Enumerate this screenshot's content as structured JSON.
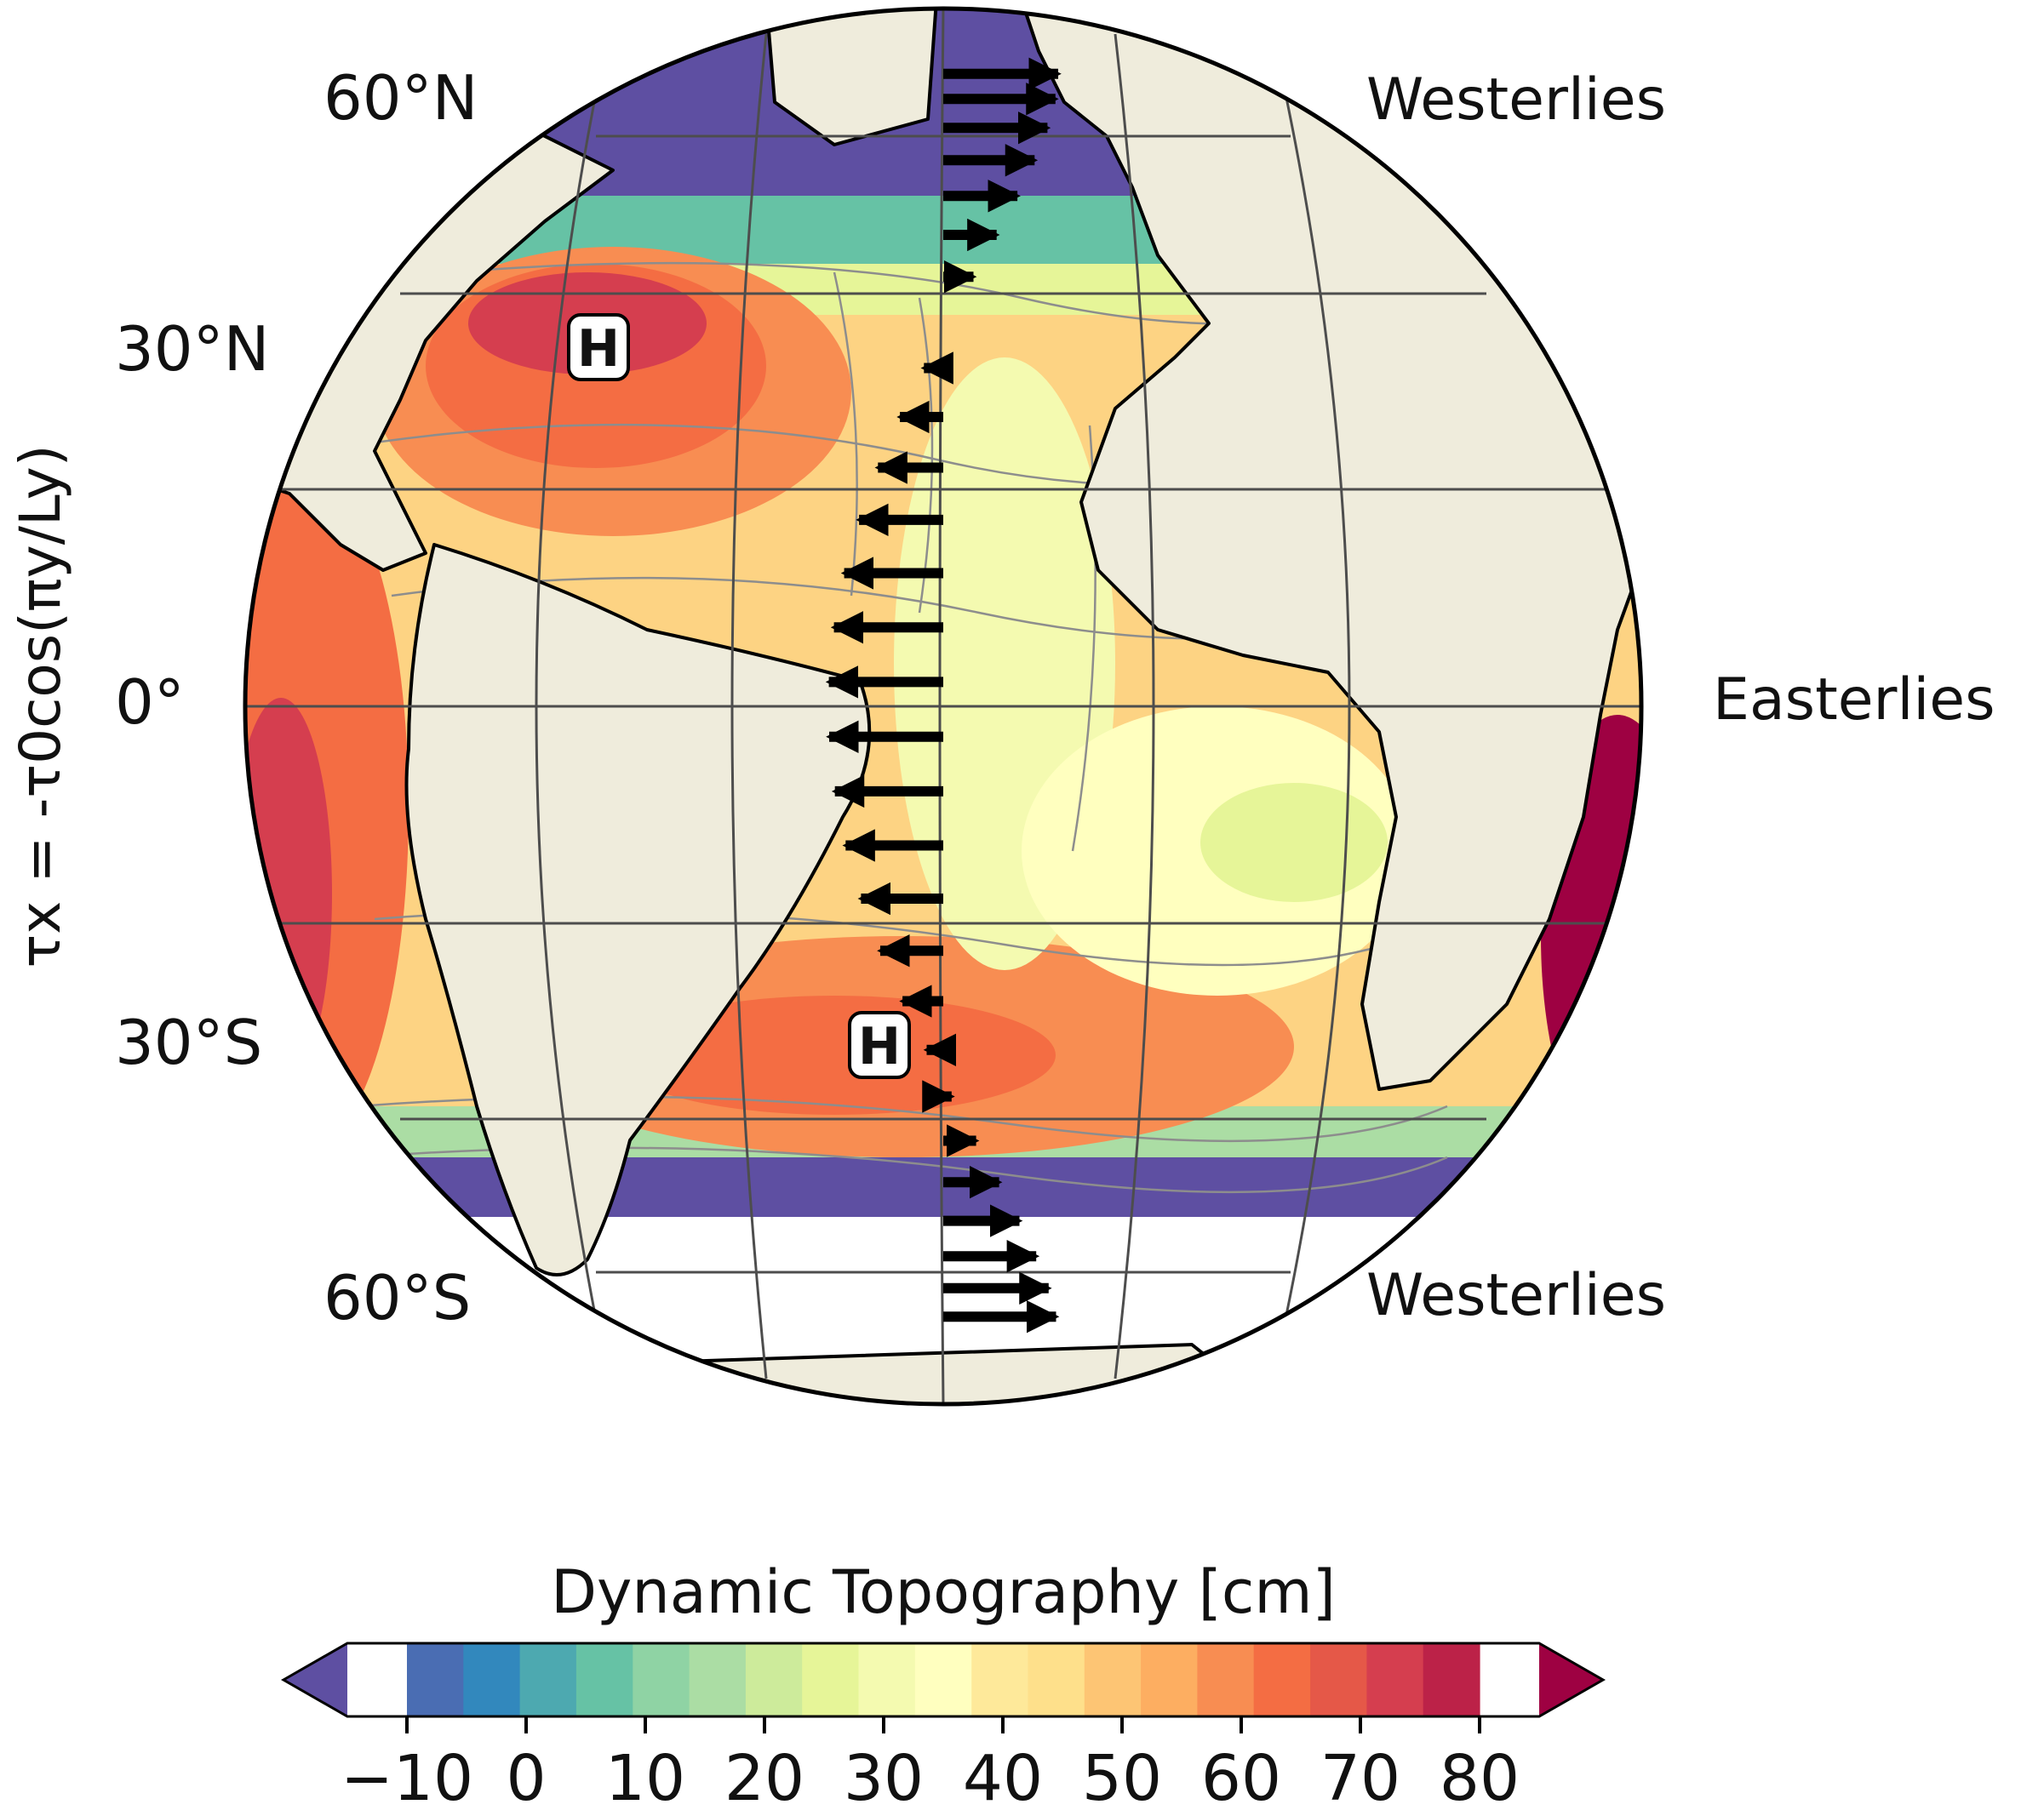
{
  "map": {
    "latitude_labels": [
      "60°N",
      "30°N",
      "0°",
      "30°S",
      "60°S"
    ],
    "wind_labels": [
      "Westerlies",
      "Easterlies",
      "Westerlies"
    ],
    "wind_stress_label": "τx = -τ0cos(πy/Ly)",
    "high_markers": [
      "H",
      "H"
    ],
    "colors": {
      "land": "#efecdc",
      "ice": "#ffffff",
      "coast": "#000000",
      "grid": "#555555"
    }
  },
  "colorbar": {
    "title": "Dynamic Topography [cm]",
    "ticks": [
      "−10",
      "0",
      "10",
      "20",
      "30",
      "40",
      "50",
      "60",
      "70",
      "80"
    ],
    "tick_values": [
      -10,
      0,
      10,
      20,
      30,
      40,
      50,
      60,
      70,
      80
    ],
    "range": [
      -15,
      85
    ],
    "colors": [
      "#5e4fa2",
      "#4a6db3",
      "#3288bd",
      "#4da9b0",
      "#66c2a5",
      "#8fd3a4",
      "#abdda4",
      "#cdeb9b",
      "#e6f598",
      "#f4fab0",
      "#ffffbf",
      "#fee99a",
      "#fee08b",
      "#fdc574",
      "#fdae61",
      "#f88d52",
      "#f46d43",
      "#e55848",
      "#d53e4f",
      "#bc2248",
      "#9e0142"
    ]
  },
  "wind_profile": {
    "description": "tau_x = -tau0 cos(pi y / Ly)",
    "lat_range": [
      -65,
      65
    ]
  }
}
